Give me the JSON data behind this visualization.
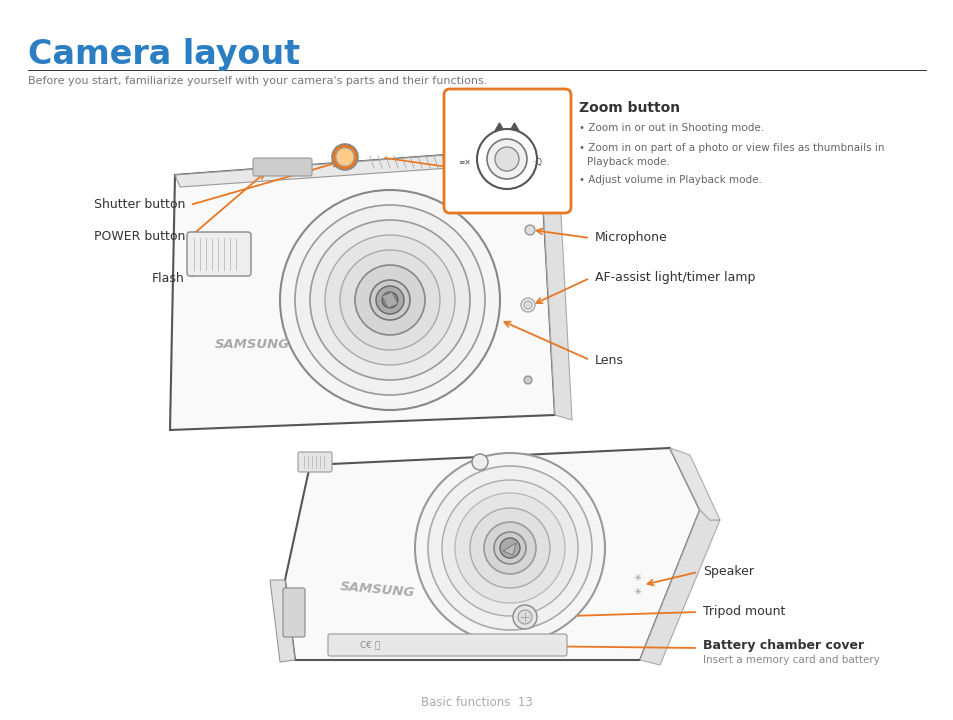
{
  "title": "Camera layout",
  "title_color": "#2B7EC1",
  "subtitle": "Before you start, familiarize yourself with your camera's parts and their functions.",
  "background_color": "#ffffff",
  "footer_text": "Basic functions  13",
  "zoom_button_title": "Zoom button",
  "zoom_bullet1": "Zoom in or out in Shooting mode.",
  "zoom_bullet2": "Zoom in on part of a photo or view files as thumbnails in\nPlayback mode.",
  "zoom_bullet3": "Adjust volume in Playback mode.",
  "battery_sub": "Insert a memory card and battery",
  "orange_color": "#E87722",
  "dark_line": "#555555",
  "mid_line": "#888888",
  "light_fill": "#f8f8f8",
  "text_dark": "#333333",
  "text_mid": "#666666",
  "title_line_color": "#333333"
}
